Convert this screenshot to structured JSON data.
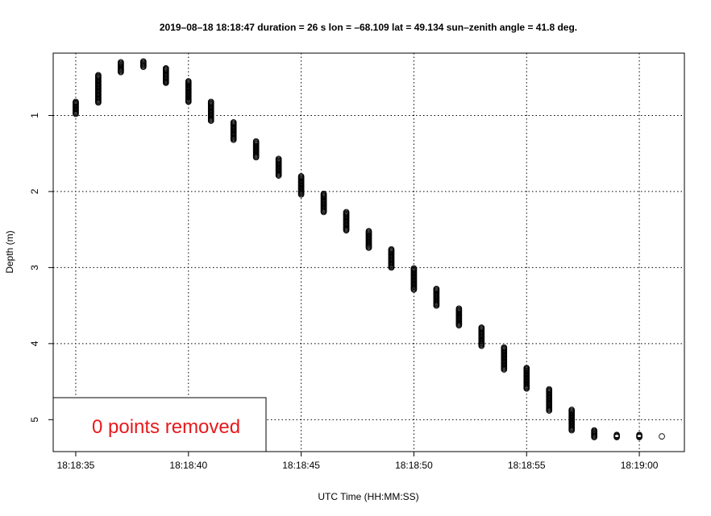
{
  "chart_data": {
    "type": "scatter",
    "title": "2019–08–18 18:18:47    duration = 26 s    lon = –68.109    lat = 49.134    sun–zenith angle = 41.8 deg.",
    "xlabel": "UTC Time (HH:MM:SS)",
    "ylabel": "Depth (m)",
    "x_unit": "seconds after 18:18:00",
    "xlim": [
      34.0,
      62.0
    ],
    "ylim": [
      5.42,
      0.18
    ],
    "y_reversed": true,
    "grid": true,
    "x_ticks": [
      35,
      40,
      45,
      50,
      55,
      60
    ],
    "x_tick_labels": [
      "18:18:35",
      "18:18:40",
      "18:18:45",
      "18:18:50",
      "18:18:55",
      "18:19:00"
    ],
    "y_ticks": [
      1,
      2,
      3,
      4,
      5
    ],
    "y_tick_labels": [
      "1",
      "2",
      "3",
      "4",
      "5"
    ],
    "marker": "open-circle",
    "point_columns": [
      {
        "time": 35,
        "depth_min": 0.82,
        "depth_max": 0.98
      },
      {
        "time": 36,
        "depth_min": 0.47,
        "depth_max": 0.83
      },
      {
        "time": 37,
        "depth_min": 0.3,
        "depth_max": 0.43
      },
      {
        "time": 38,
        "depth_min": 0.29,
        "depth_max": 0.36
      },
      {
        "time": 39,
        "depth_min": 0.38,
        "depth_max": 0.57
      },
      {
        "time": 40,
        "depth_min": 0.55,
        "depth_max": 0.82
      },
      {
        "time": 41,
        "depth_min": 0.82,
        "depth_max": 1.07
      },
      {
        "time": 42,
        "depth_min": 1.09,
        "depth_max": 1.32
      },
      {
        "time": 43,
        "depth_min": 1.34,
        "depth_max": 1.55
      },
      {
        "time": 44,
        "depth_min": 1.57,
        "depth_max": 1.79
      },
      {
        "time": 45,
        "depth_min": 1.8,
        "depth_max": 2.04
      },
      {
        "time": 46,
        "depth_min": 2.03,
        "depth_max": 2.27
      },
      {
        "time": 47,
        "depth_min": 2.27,
        "depth_max": 2.51
      },
      {
        "time": 48,
        "depth_min": 2.52,
        "depth_max": 2.74
      },
      {
        "time": 49,
        "depth_min": 2.76,
        "depth_max": 3.0
      },
      {
        "time": 50,
        "depth_min": 3.01,
        "depth_max": 3.29
      },
      {
        "time": 51,
        "depth_min": 3.28,
        "depth_max": 3.5
      },
      {
        "time": 52,
        "depth_min": 3.54,
        "depth_max": 3.76
      },
      {
        "time": 53,
        "depth_min": 3.79,
        "depth_max": 4.03
      },
      {
        "time": 54,
        "depth_min": 4.05,
        "depth_max": 4.34
      },
      {
        "time": 55,
        "depth_min": 4.32,
        "depth_max": 4.59
      },
      {
        "time": 56,
        "depth_min": 4.6,
        "depth_max": 4.88
      },
      {
        "time": 57,
        "depth_min": 4.87,
        "depth_max": 5.14
      },
      {
        "time": 58,
        "depth_min": 5.14,
        "depth_max": 5.23
      },
      {
        "time": 59,
        "depth_min": 5.2,
        "depth_max": 5.23
      },
      {
        "time": 60,
        "depth_min": 5.2,
        "depth_max": 5.23
      },
      {
        "time": 61,
        "depth_min": 5.22,
        "depth_max": 5.22
      }
    ],
    "legend": {
      "text": "0 points removed",
      "color": "#e8191c",
      "placement": "bottom-left"
    }
  }
}
